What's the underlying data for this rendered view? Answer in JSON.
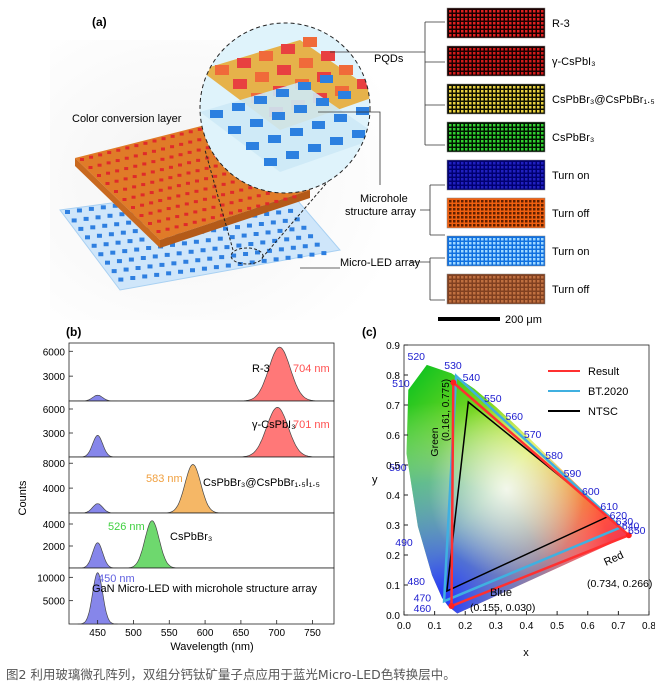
{
  "panel_a": {
    "label": "(a)",
    "pqds_label": "PQDs",
    "color_conversion_label": "Color conversion layer",
    "microhole_label_1": "Microhole",
    "microhole_label_2": "structure array",
    "microled_label": "Micro-LED array",
    "scale_bar": "200 μm",
    "swatches": [
      {
        "label": "R-3",
        "bg": "#1a0000",
        "dot": "#e02020"
      },
      {
        "label": "γ-CsPbI₃",
        "bg": "#1a0000",
        "dot": "#d21a1a"
      },
      {
        "label": "CsPbBr₃@CsPbBr₁.₅I₁.₅",
        "bg": "#101000",
        "dot": "#e8d040"
      },
      {
        "label": "CsPbBr₃",
        "bg": "#001400",
        "dot": "#30d030"
      },
      {
        "label": "Turn on",
        "bg": "#000070",
        "dot": "#2020c0"
      },
      {
        "label": "Turn off",
        "bg": "#f06010",
        "dot": "#602000"
      },
      {
        "label": "Turn on",
        "bg": "#1070e0",
        "dot": "#a0d8ff"
      },
      {
        "label": "Turn off",
        "bg": "#804020",
        "dot": "#c07040"
      }
    ]
  },
  "panel_b": {
    "label": "(b)",
    "ylabel": "Counts",
    "xlabel": "Wavelength (nm)",
    "x_ticks": [
      "450",
      "500",
      "550",
      "600",
      "650",
      "700",
      "750"
    ],
    "subpanels": [
      {
        "name": "R-3",
        "peak_label": "704 nm",
        "color": "#ff5050",
        "ticks": [
          "6000",
          "3000"
        ]
      },
      {
        "name": "γ-CsPbI₃",
        "peak_label": "701 nm",
        "color": "#ff5050",
        "ticks": [
          "6000",
          "3000"
        ]
      },
      {
        "name": "CsPbBr₃@CsPbBr₁.₅I₁.₅",
        "peak_label": "583 nm",
        "color": "#f0a040",
        "ticks": [
          "8000",
          "4000"
        ]
      },
      {
        "name": "CsPbBr₃",
        "peak_label": "526 nm",
        "color": "#40d040",
        "ticks": [
          "4000",
          "2000"
        ]
      },
      {
        "name": "GaN Micro-LED with microhole structure array",
        "peak_label": "450 nm",
        "color": "#6060e0",
        "ticks": [
          "10000",
          "5000"
        ]
      }
    ]
  },
  "panel_c": {
    "label": "(c)",
    "xlabel": "x",
    "ylabel": "y",
    "legend": [
      "Result",
      "BT.2020",
      "NTSC"
    ],
    "green_label": "Green",
    "green_coord": "(0.161, 0.775)",
    "red_label": "Red",
    "red_coord": "(0.734, 0.266)",
    "blue_label": "Blue",
    "blue_coord": "(0.155, 0.030)",
    "x_ticks": [
      "0.0",
      "0.1",
      "0.2",
      "0.3",
      "0.4",
      "0.5",
      "0.6",
      "0.7",
      "0.8"
    ],
    "y_ticks": [
      "0.0",
      "0.1",
      "0.2",
      "0.3",
      "0.4",
      "0.5",
      "0.6",
      "0.7",
      "0.8",
      "0.9"
    ],
    "wavelength_labels": [
      "460",
      "470",
      "480",
      "490",
      "500",
      "510",
      "520",
      "530",
      "540",
      "550",
      "560",
      "570",
      "580",
      "590",
      "600",
      "610",
      "620",
      "630",
      "640",
      "650"
    ]
  },
  "chart_data": [
    {
      "type": "line",
      "xlabel": "Wavelength (nm)",
      "ylabel": "Counts",
      "series": [
        {
          "name": "R-3",
          "peaks": [
            {
              "center": 450,
              "height": 700
            },
            {
              "center": 704,
              "height": 6500
            }
          ]
        },
        {
          "name": "γ-CsPbI₃",
          "peaks": [
            {
              "center": 450,
              "height": 2700
            },
            {
              "center": 701,
              "height": 6200
            }
          ]
        },
        {
          "name": "CsPbBr₃@CsPbBr₁.₅I₁.₅",
          "peaks": [
            {
              "center": 450,
              "height": 1500
            },
            {
              "center": 583,
              "height": 7800
            }
          ]
        },
        {
          "name": "CsPbBr₃",
          "peaks": [
            {
              "center": 450,
              "height": 2300
            },
            {
              "center": 526,
              "height": 4300
            }
          ]
        },
        {
          "name": "GaN Micro-LED with microhole structure array",
          "peaks": [
            {
              "center": 450,
              "height": 11000
            }
          ]
        }
      ],
      "xlim": [
        410,
        780
      ]
    },
    {
      "type": "scatter",
      "xlabel": "x",
      "ylabel": "y",
      "xlim": [
        0.0,
        0.8
      ],
      "ylim": [
        0.0,
        0.9
      ],
      "series": [
        {
          "name": "Result",
          "points": [
            [
              0.161,
              0.775
            ],
            [
              0.734,
              0.266
            ],
            [
              0.155,
              0.03
            ]
          ]
        },
        {
          "name": "BT.2020",
          "points": [
            [
              0.17,
              0.797
            ],
            [
              0.708,
              0.292
            ],
            [
              0.131,
              0.046
            ]
          ]
        },
        {
          "name": "NTSC",
          "points": [
            [
              0.21,
              0.71
            ],
            [
              0.67,
              0.33
            ],
            [
              0.14,
              0.08
            ]
          ]
        }
      ]
    }
  ],
  "caption": "图2 利用玻璃微孔阵列，双组分钙钛矿量子点应用于蓝光Micro-LED色转换层中。"
}
